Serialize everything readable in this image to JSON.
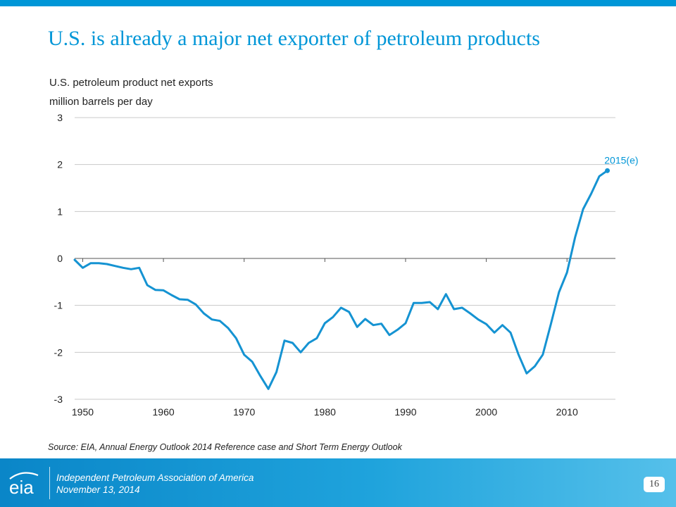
{
  "slide": {
    "title": "U.S. is already a major net exporter of petroleum products",
    "subtitle_line1": "U.S. petroleum product net exports",
    "subtitle_line2": "million barrels per day",
    "source": "Source:  EIA, Annual Energy Outlook 2014 Reference case and Short Term Energy Outlook",
    "page_number": "16"
  },
  "footer": {
    "organization": "Independent Petroleum Association of America",
    "date": "November 13, 2014",
    "logo_text": "eia"
  },
  "colors": {
    "accent": "#0096d7",
    "line": "#1593d2",
    "footer": "#1a9ad7"
  },
  "chart_data": {
    "type": "line",
    "title": "U.S. petroleum product net exports",
    "ylabel": "million barrels per day",
    "xlabel": "",
    "ylim": [
      -3,
      3
    ],
    "xlim": [
      1949,
      2016
    ],
    "yticks": [
      "3",
      "2",
      "1",
      "0",
      "-1",
      "-2",
      "-3"
    ],
    "xticks": [
      "1950",
      "1960",
      "1970",
      "1980",
      "1990",
      "2000",
      "2010"
    ],
    "grid": true,
    "annotation": "2015(e)",
    "series": [
      {
        "x": [
          1949,
          1950,
          1951,
          1952,
          1953,
          1954,
          1955,
          1956,
          1957,
          1958,
          1959,
          1960,
          1961,
          1962,
          1963,
          1964,
          1965,
          1966,
          1967,
          1968,
          1969,
          1970,
          1971,
          1972,
          1973,
          1974,
          1975,
          1976,
          1977,
          1978,
          1979,
          1980,
          1981,
          1982,
          1983,
          1984,
          1985,
          1986,
          1987,
          1988,
          1989,
          1990,
          1991,
          1992,
          1993,
          1994,
          1995,
          1996,
          1997,
          1998,
          1999,
          2000,
          2001,
          2002,
          2003,
          2004,
          2005,
          2006,
          2007,
          2008,
          2009,
          2010,
          2011,
          2012,
          2013,
          2014,
          2015
        ],
        "values": [
          -0.03,
          -0.2,
          -0.1,
          -0.1,
          -0.12,
          -0.16,
          -0.2,
          -0.23,
          -0.2,
          -0.57,
          -0.67,
          -0.68,
          -0.78,
          -0.87,
          -0.88,
          -0.98,
          -1.17,
          -1.3,
          -1.33,
          -1.48,
          -1.7,
          -2.05,
          -2.2,
          -2.5,
          -2.78,
          -2.42,
          -1.75,
          -1.8,
          -2.0,
          -1.8,
          -1.7,
          -1.38,
          -1.25,
          -1.05,
          -1.14,
          -1.46,
          -1.29,
          -1.42,
          -1.39,
          -1.63,
          -1.52,
          -1.38,
          -0.95,
          -0.95,
          -0.93,
          -1.08,
          -0.76,
          -1.08,
          -1.05,
          -1.17,
          -1.3,
          -1.4,
          -1.58,
          -1.42,
          -1.58,
          -2.05,
          -2.45,
          -2.3,
          -2.05,
          -1.4,
          -0.72,
          -0.3,
          0.45,
          1.05,
          1.38,
          1.75,
          1.87
        ]
      }
    ]
  }
}
